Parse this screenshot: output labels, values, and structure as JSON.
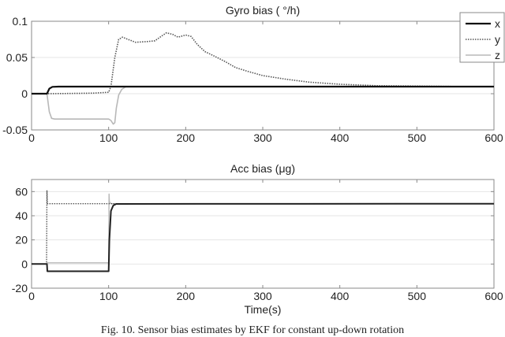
{
  "caption": "Fig. 10.   Sensor bias estimates by EKF for constant up-down rotation",
  "chart_data": [
    {
      "type": "line",
      "title": "Gyro bias ( °/h)",
      "xlabel": "",
      "ylabel": "",
      "xlim": [
        0,
        600
      ],
      "ylim": [
        -0.05,
        0.1
      ],
      "xticks": [
        0,
        100,
        200,
        300,
        400,
        500,
        600
      ],
      "yticks": [
        -0.05,
        0,
        0.05,
        0.1
      ],
      "ytick_labels": [
        "-0.05",
        "0",
        "0.05",
        "0.1"
      ],
      "grid": "horizontal",
      "legend": {
        "position": "top-right",
        "entries": [
          "x",
          "y",
          "z"
        ]
      },
      "series": [
        {
          "name": "x",
          "style": "solid",
          "color": "#111111",
          "width": 2.2,
          "x": [
            0,
            20,
            23,
            27,
            35,
            600
          ],
          "y": [
            0,
            0,
            0.007,
            0.0095,
            0.0098,
            0.0098
          ]
        },
        {
          "name": "y",
          "style": "dotted",
          "color": "#555555",
          "width": 1.6,
          "x": [
            0,
            20,
            40,
            80,
            100,
            103,
            108,
            113,
            118,
            125,
            135,
            150,
            160,
            168,
            175,
            183,
            190,
            200,
            207,
            215,
            225,
            235,
            250,
            265,
            280,
            300,
            330,
            360,
            400,
            450,
            500,
            550,
            600
          ],
          "y": [
            0,
            0,
            0.0002,
            0.0008,
            0.002,
            0.01,
            0.05,
            0.075,
            0.078,
            0.075,
            0.071,
            0.072,
            0.073,
            0.079,
            0.084,
            0.082,
            0.078,
            0.081,
            0.079,
            0.068,
            0.058,
            0.053,
            0.045,
            0.036,
            0.031,
            0.025,
            0.02,
            0.016,
            0.013,
            0.011,
            0.0105,
            0.01,
            0.01
          ]
        },
        {
          "name": "z",
          "style": "solid",
          "color": "#b8b8b8",
          "width": 1.6,
          "x": [
            0,
            20,
            23,
            26,
            30,
            100,
            103,
            106,
            108,
            110,
            113,
            117,
            122,
            600
          ],
          "y": [
            0,
            0,
            -0.025,
            -0.034,
            -0.035,
            -0.035,
            -0.037,
            -0.042,
            -0.04,
            -0.02,
            -0.002,
            0.006,
            0.0095,
            0.0098
          ]
        }
      ]
    },
    {
      "type": "line",
      "title": "Acc bias (μg)",
      "xlabel": "Time(s)",
      "ylabel": "",
      "xlim": [
        0,
        600
      ],
      "ylim": [
        -20,
        70
      ],
      "xticks": [
        0,
        100,
        200,
        300,
        400,
        500,
        600
      ],
      "yticks": [
        -20,
        0,
        20,
        40,
        60
      ],
      "ytick_labels": [
        "-20",
        "0",
        "20",
        "40",
        "60"
      ],
      "grid": "horizontal",
      "series": [
        {
          "name": "x",
          "style": "solid",
          "color": "#222222",
          "width": 2.0,
          "x": [
            0,
            20,
            20.5,
            100,
            101,
            103,
            106,
            110,
            600
          ],
          "y": [
            0,
            0,
            -6,
            -6,
            20,
            44,
            48.5,
            49.8,
            50
          ]
        },
        {
          "name": "y",
          "style": "dotted",
          "color": "#555555",
          "width": 1.4,
          "x": [
            0,
            19.5,
            20,
            20.5,
            21,
            600
          ],
          "y": [
            0,
            0,
            61,
            50,
            50,
            50
          ]
        },
        {
          "name": "z",
          "style": "solid",
          "color": "#b8b8b8",
          "width": 1.4,
          "x": [
            0,
            20,
            20.5,
            100,
            100.5,
            101,
            102,
            104,
            106,
            600
          ],
          "y": [
            0,
            0,
            1,
            1,
            58,
            52,
            50.5,
            50,
            50,
            50
          ]
        }
      ]
    }
  ]
}
